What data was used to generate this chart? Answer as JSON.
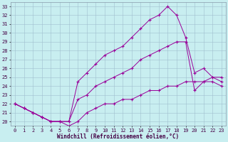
{
  "xlabel": "Windchill (Refroidissement éolien,°C)",
  "bg_color": "#c8eef0",
  "grid_color": "#a0bece",
  "line_color": "#990099",
  "hours": [
    0,
    1,
    2,
    3,
    4,
    5,
    6,
    7,
    8,
    9,
    10,
    11,
    12,
    13,
    14,
    15,
    16,
    17,
    18,
    19,
    20,
    21,
    22,
    23
  ],
  "series1": [
    22.0,
    21.5,
    21.0,
    20.5,
    20.0,
    20.0,
    20.0,
    24.5,
    25.5,
    26.5,
    27.5,
    28.0,
    28.5,
    29.5,
    30.5,
    31.5,
    32.0,
    33.0,
    32.0,
    29.5,
    25.5,
    26.0,
    25.0,
    24.5
  ],
  "series2": [
    22.0,
    21.5,
    21.0,
    20.5,
    20.0,
    20.0,
    20.0,
    22.5,
    23.0,
    24.0,
    24.5,
    25.0,
    25.5,
    26.0,
    27.0,
    27.5,
    28.0,
    28.5,
    29.0,
    29.0,
    23.5,
    24.5,
    24.5,
    24.0
  ],
  "series3": [
    22.0,
    21.5,
    21.0,
    20.5,
    20.0,
    20.0,
    19.5,
    20.0,
    21.0,
    21.5,
    22.0,
    22.0,
    22.5,
    22.5,
    23.0,
    23.5,
    23.5,
    24.0,
    24.0,
    24.5,
    24.5,
    24.5,
    25.0,
    25.0
  ],
  "xlim": [
    0,
    23
  ],
  "ylim": [
    19.5,
    33.5
  ],
  "yticks": [
    20,
    21,
    22,
    23,
    24,
    25,
    26,
    27,
    28,
    29,
    30,
    31,
    32,
    33
  ],
  "xticks": [
    0,
    1,
    2,
    3,
    4,
    5,
    6,
    7,
    8,
    9,
    10,
    11,
    12,
    13,
    14,
    15,
    16,
    17,
    18,
    19,
    20,
    21,
    22,
    23
  ]
}
